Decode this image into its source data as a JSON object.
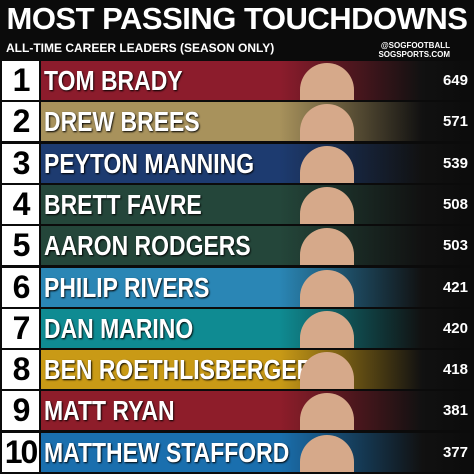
{
  "header": {
    "title": "MOST PASSING TOUCHDOWNS",
    "subtitle": "ALL-TIME CAREER LEADERS (SEASON ONLY)",
    "credit": [
      "@SOGFOOTBALL",
      "SOGSPORTS.COM"
    ]
  },
  "rows": [
    {
      "rank": 1,
      "name": "TOM BRADY",
      "value": 649,
      "color": "#8c1c2c"
    },
    {
      "rank": 2,
      "name": "DREW BREES",
      "value": 571,
      "color": "#a8925c"
    },
    {
      "rank": 3,
      "name": "PEYTON MANNING",
      "value": 539,
      "color": "#1d3b70"
    },
    {
      "rank": 4,
      "name": "BRETT FAVRE",
      "value": 508,
      "color": "#24463a"
    },
    {
      "rank": 5,
      "name": "AARON RODGERS",
      "value": 503,
      "color": "#24463a"
    },
    {
      "rank": 6,
      "name": "PHILIP RIVERS",
      "value": 421,
      "color": "#2a86b5"
    },
    {
      "rank": 7,
      "name": "DAN MARINO",
      "value": 420,
      "color": "#0f8b92"
    },
    {
      "rank": 8,
      "name": "BEN ROETHLISBERGER",
      "value": 418,
      "color": "#c99a16"
    },
    {
      "rank": 9,
      "name": "MATT RYAN",
      "value": 381,
      "color": "#8e1d2a"
    },
    {
      "rank": 10,
      "name": "MATTHEW STAFFORD",
      "value": 377,
      "color": "#1a6fae"
    }
  ]
}
